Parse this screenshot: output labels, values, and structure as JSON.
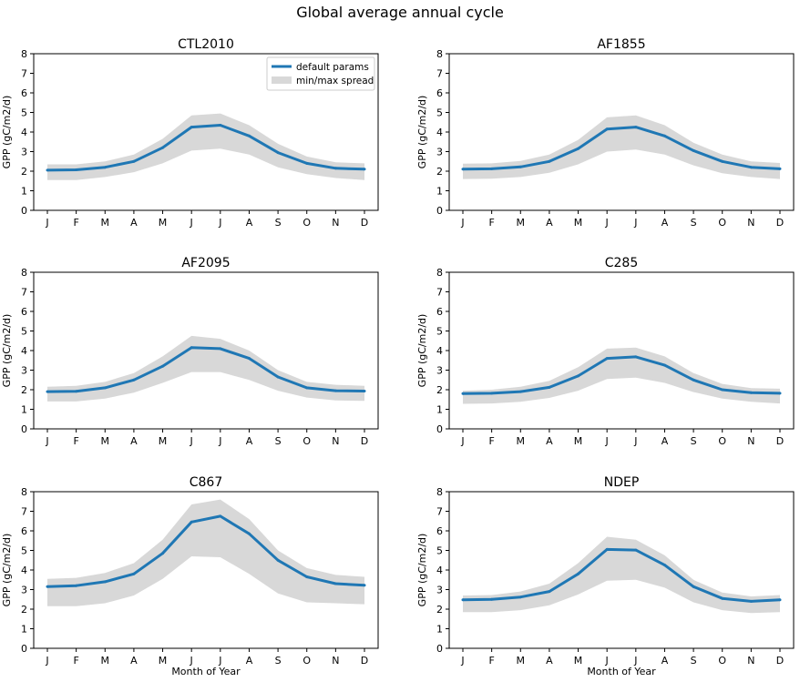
{
  "figure": {
    "suptitle": "Global average annual cycle",
    "legend_location": "top-right of first panel",
    "series_color": "#1f77b4",
    "band_color": "#d8d8d8"
  },
  "chart_data": [
    {
      "type": "line",
      "title": "CTL2010",
      "xlabel": "",
      "ylabel": "GPP (gC/m2/d)",
      "ylim": [
        0,
        8
      ],
      "categories": [
        "J",
        "F",
        "M",
        "A",
        "M",
        "J",
        "J",
        "A",
        "S",
        "O",
        "N",
        "D"
      ],
      "series": [
        {
          "name": "default params",
          "values": [
            2.05,
            2.07,
            2.2,
            2.5,
            3.2,
            4.25,
            4.35,
            3.8,
            2.95,
            2.4,
            2.15,
            2.1
          ]
        },
        {
          "name": "min/max spread",
          "kind": "band",
          "min": [
            1.55,
            1.55,
            1.7,
            1.95,
            2.4,
            3.05,
            3.15,
            2.85,
            2.2,
            1.85,
            1.65,
            1.55
          ],
          "max": [
            2.35,
            2.35,
            2.5,
            2.85,
            3.65,
            4.85,
            4.95,
            4.35,
            3.4,
            2.75,
            2.45,
            2.4
          ]
        }
      ],
      "legend": [
        "default params",
        "min/max spread"
      ]
    },
    {
      "type": "line",
      "title": "AF1855",
      "xlabel": "",
      "ylabel": "GPP (gC/m2/d)",
      "ylim": [
        0,
        8
      ],
      "categories": [
        "J",
        "F",
        "M",
        "A",
        "M",
        "J",
        "J",
        "A",
        "S",
        "O",
        "N",
        "D"
      ],
      "series": [
        {
          "name": "default params",
          "values": [
            2.1,
            2.12,
            2.22,
            2.5,
            3.15,
            4.15,
            4.25,
            3.8,
            3.05,
            2.5,
            2.2,
            2.12
          ]
        },
        {
          "name": "min/max spread",
          "kind": "band",
          "min": [
            1.6,
            1.62,
            1.7,
            1.92,
            2.35,
            3.0,
            3.1,
            2.85,
            2.3,
            1.9,
            1.7,
            1.6
          ],
          "max": [
            2.38,
            2.4,
            2.52,
            2.85,
            3.6,
            4.75,
            4.85,
            4.35,
            3.45,
            2.85,
            2.5,
            2.42
          ]
        }
      ]
    },
    {
      "type": "line",
      "title": "AF2095",
      "xlabel": "",
      "ylabel": "GPP (gC/m2/d)",
      "ylim": [
        0,
        8
      ],
      "categories": [
        "J",
        "F",
        "M",
        "A",
        "M",
        "J",
        "J",
        "A",
        "S",
        "O",
        "N",
        "D"
      ],
      "series": [
        {
          "name": "default params",
          "values": [
            1.9,
            1.92,
            2.1,
            2.5,
            3.2,
            4.15,
            4.1,
            3.6,
            2.65,
            2.1,
            1.95,
            1.93
          ]
        },
        {
          "name": "min/max spread",
          "kind": "band",
          "min": [
            1.4,
            1.4,
            1.55,
            1.85,
            2.35,
            2.9,
            2.9,
            2.5,
            1.95,
            1.6,
            1.45,
            1.43
          ],
          "max": [
            2.15,
            2.2,
            2.4,
            2.85,
            3.7,
            4.75,
            4.6,
            4.0,
            3.0,
            2.4,
            2.25,
            2.2
          ]
        }
      ]
    },
    {
      "type": "line",
      "title": "C285",
      "xlabel": "",
      "ylabel": "GPP (gC/m2/d)",
      "ylim": [
        0,
        8
      ],
      "categories": [
        "J",
        "F",
        "M",
        "A",
        "M",
        "J",
        "J",
        "A",
        "S",
        "O",
        "N",
        "D"
      ],
      "series": [
        {
          "name": "default params",
          "values": [
            1.8,
            1.82,
            1.9,
            2.12,
            2.7,
            3.6,
            3.68,
            3.25,
            2.5,
            2.0,
            1.85,
            1.82
          ]
        },
        {
          "name": "min/max spread",
          "kind": "band",
          "min": [
            1.28,
            1.3,
            1.38,
            1.58,
            1.95,
            2.55,
            2.62,
            2.35,
            1.88,
            1.55,
            1.38,
            1.3
          ],
          "max": [
            1.95,
            2.0,
            2.15,
            2.45,
            3.15,
            4.1,
            4.15,
            3.7,
            2.85,
            2.3,
            2.08,
            2.05
          ]
        }
      ]
    },
    {
      "type": "line",
      "title": "C867",
      "xlabel": "Month of Year",
      "ylabel": "GPP (gC/m2/d)",
      "ylim": [
        0,
        8
      ],
      "categories": [
        "J",
        "F",
        "M",
        "A",
        "M",
        "J",
        "J",
        "A",
        "S",
        "O",
        "N",
        "D"
      ],
      "series": [
        {
          "name": "default params",
          "values": [
            3.15,
            3.2,
            3.4,
            3.8,
            4.85,
            6.45,
            6.75,
            5.85,
            4.5,
            3.65,
            3.3,
            3.22
          ]
        },
        {
          "name": "min/max spread",
          "kind": "band",
          "min": [
            2.15,
            2.15,
            2.3,
            2.7,
            3.55,
            4.7,
            4.65,
            3.8,
            2.8,
            2.35,
            2.3,
            2.25
          ],
          "max": [
            3.55,
            3.6,
            3.85,
            4.35,
            5.55,
            7.35,
            7.6,
            6.6,
            5.0,
            4.1,
            3.75,
            3.65
          ]
        }
      ]
    },
    {
      "type": "line",
      "title": "NDEP",
      "xlabel": "Month of Year",
      "ylabel": "GPP (gC/m2/d)",
      "ylim": [
        0,
        8
      ],
      "categories": [
        "J",
        "F",
        "M",
        "A",
        "M",
        "J",
        "J",
        "A",
        "S",
        "O",
        "N",
        "D"
      ],
      "series": [
        {
          "name": "default params",
          "values": [
            2.48,
            2.5,
            2.62,
            2.9,
            3.8,
            5.05,
            5.02,
            4.25,
            3.15,
            2.55,
            2.4,
            2.48
          ]
        },
        {
          "name": "min/max spread",
          "kind": "band",
          "min": [
            1.85,
            1.85,
            1.95,
            2.2,
            2.75,
            3.45,
            3.5,
            3.1,
            2.35,
            1.95,
            1.8,
            1.85
          ],
          "max": [
            2.7,
            2.72,
            2.9,
            3.3,
            4.35,
            5.7,
            5.55,
            4.75,
            3.5,
            2.85,
            2.65,
            2.72
          ]
        }
      ]
    }
  ]
}
